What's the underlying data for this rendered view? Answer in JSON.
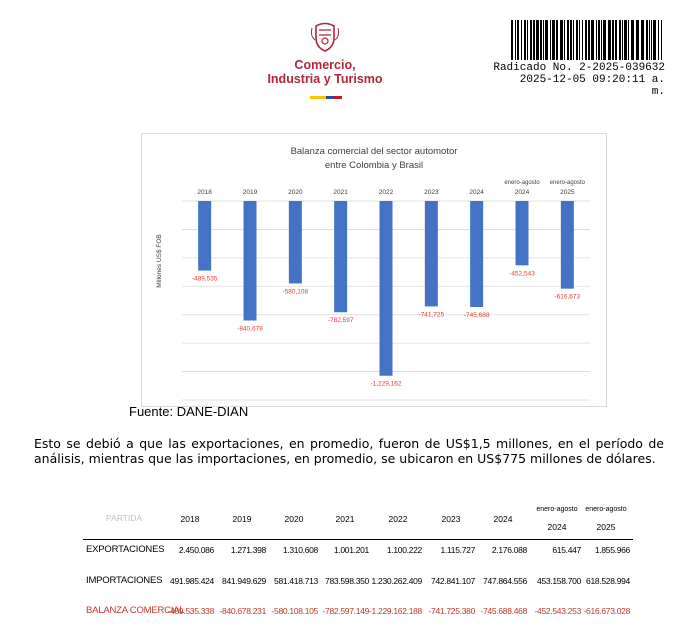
{
  "header": {
    "logo_line1": "Comercio,",
    "logo_line2": "Industria y Turismo",
    "radicado_line1": "Radicado No. 2-2025-039632",
    "radicado_line2": "2025-12-05 09:20:11 a.",
    "radicado_line3": "m."
  },
  "chart_data": {
    "type": "bar",
    "title_line1": "Balanza comercial del sector automotor",
    "title_line2": "entre Colombia y Brasil",
    "ylabel": "Millones US$ FOB",
    "categories": [
      {
        "top": "",
        "bottom": "2018"
      },
      {
        "top": "",
        "bottom": "2019"
      },
      {
        "top": "",
        "bottom": "2020"
      },
      {
        "top": "",
        "bottom": "2021"
      },
      {
        "top": "",
        "bottom": "2022"
      },
      {
        "top": "",
        "bottom": "2023"
      },
      {
        "top": "",
        "bottom": "2024"
      },
      {
        "top": "enero-agosto",
        "bottom": "2024"
      },
      {
        "top": "enero-agosto",
        "bottom": "2025"
      }
    ],
    "values": [
      -489535,
      -840678,
      -580108,
      -782597,
      -1229162,
      -741725,
      -745688,
      -452543,
      -616673
    ],
    "value_labels": [
      "-489,535",
      "-840,678",
      "-580,108",
      "-782,597",
      "-1,229,162",
      "-741,725",
      "-745,688",
      "-452,543",
      "-616,673"
    ],
    "ylim": [
      -1400000,
      0
    ],
    "grid": true,
    "bar_color": "#4472c4",
    "label_color": "#e03c31"
  },
  "source_text": "Fuente: DANE-DIAN",
  "paragraph": "Esto se debió a que las exportaciones, en promedio, fueron de US$1,5 millones, en el período de análisis, mientras que las importaciones, en promedio, se ubicaron en US$775 millones de dólares.",
  "table": {
    "header_label": "PARTIDA",
    "columns": [
      {
        "l1": "2018",
        "l2": ""
      },
      {
        "l1": "2019",
        "l2": ""
      },
      {
        "l1": "2020",
        "l2": ""
      },
      {
        "l1": "2021",
        "l2": ""
      },
      {
        "l1": "2022",
        "l2": ""
      },
      {
        "l1": "2023",
        "l2": ""
      },
      {
        "l1": "2024",
        "l2": ""
      },
      {
        "l1": "enero-agosto",
        "l2": "2024"
      },
      {
        "l1": "enero-agosto",
        "l2": "2025"
      }
    ],
    "rows": [
      {
        "label": "EXPORTACIONES",
        "values": [
          "2.450.086",
          "1.271.398",
          "1.310.608",
          "1.001.201",
          "1.100.222",
          "1.115.727",
          "2.176.088",
          "615.447",
          "1.855.966"
        ]
      },
      {
        "label": "IMPORTACIONES",
        "values": [
          "491.985.424",
          "841.949.629",
          "581.418.713",
          "783.598.350",
          "1.230.262.409",
          "742.841.107",
          "747.864.556",
          "453.158.700",
          "618.528.994"
        ]
      },
      {
        "label": "BALANZA COMERCIAL",
        "values": [
          "-489.535.338",
          "-840.678.231",
          "-580.108.105",
          "-782.597.149",
          "-1.229.162.188",
          "-741.725.380",
          "-745.688.468",
          "-452.543.253",
          "-616.673.028"
        ]
      }
    ]
  }
}
